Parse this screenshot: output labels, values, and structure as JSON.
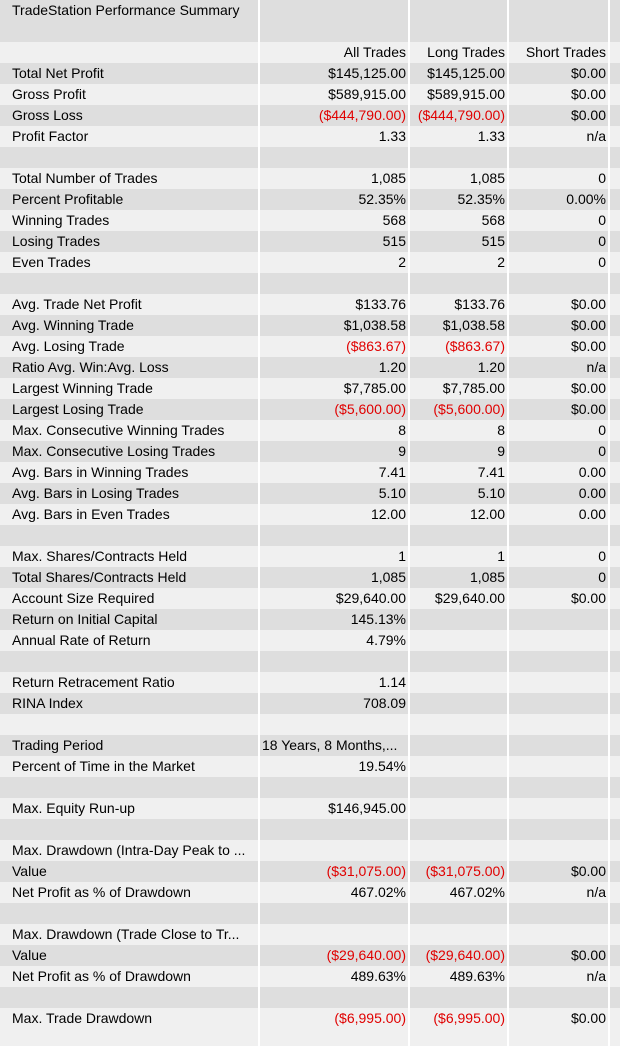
{
  "title": "TradeStation Performance Summary",
  "headers": [
    "",
    "All Trades",
    "Long Trades",
    "Short Trades"
  ],
  "rows": [
    [
      "Total Net Profit",
      "$145,125.00",
      "$145,125.00",
      "$0.00"
    ],
    [
      "Gross Profit",
      "$589,915.00",
      "$589,915.00",
      "$0.00"
    ],
    [
      "Gross Loss",
      "($444,790.00)",
      "($444,790.00)",
      "$0.00"
    ],
    [
      "Profit Factor",
      "1.33",
      "1.33",
      "n/a"
    ],
    null,
    [
      "Total Number of Trades",
      "1,085",
      "1,085",
      "0"
    ],
    [
      "Percent Profitable",
      "52.35%",
      "52.35%",
      "0.00%"
    ],
    [
      "Winning Trades",
      "568",
      "568",
      "0"
    ],
    [
      "Losing Trades",
      "515",
      "515",
      "0"
    ],
    [
      "Even Trades",
      "2",
      "2",
      "0"
    ],
    null,
    [
      "Avg. Trade Net Profit",
      "$133.76",
      "$133.76",
      "$0.00"
    ],
    [
      "Avg. Winning Trade",
      "$1,038.58",
      "$1,038.58",
      "$0.00"
    ],
    [
      "Avg. Losing Trade",
      "($863.67)",
      "($863.67)",
      "$0.00"
    ],
    [
      "Ratio Avg. Win:Avg. Loss",
      "1.20",
      "1.20",
      "n/a"
    ],
    [
      "Largest Winning Trade",
      "$7,785.00",
      "$7,785.00",
      "$0.00"
    ],
    [
      "Largest Losing Trade",
      "($5,600.00)",
      "($5,600.00)",
      "$0.00"
    ],
    [
      "Max. Consecutive Winning Trades",
      "8",
      "8",
      "0"
    ],
    [
      "Max. Consecutive Losing Trades",
      "9",
      "9",
      "0"
    ],
    [
      "Avg. Bars in Winning Trades",
      "7.41",
      "7.41",
      "0.00"
    ],
    [
      "Avg. Bars in Losing Trades",
      "5.10",
      "5.10",
      "0.00"
    ],
    [
      "Avg. Bars in Even Trades",
      "12.00",
      "12.00",
      "0.00"
    ],
    null,
    [
      "Max. Shares/Contracts Held",
      "1",
      "1",
      "0"
    ],
    [
      "Total Shares/Contracts Held",
      "1,085",
      "1,085",
      "0"
    ],
    [
      "Account Size Required",
      "$29,640.00",
      "$29,640.00",
      "$0.00"
    ],
    [
      "Return on Initial Capital",
      "145.13%",
      "",
      ""
    ],
    [
      "Annual Rate of Return",
      "4.79%",
      "",
      ""
    ],
    null,
    [
      "Return Retracement Ratio",
      "1.14",
      "",
      ""
    ],
    [
      "RINA Index",
      "708.09",
      "",
      ""
    ],
    null,
    [
      "Trading Period",
      "18 Years, 8 Months,...",
      "",
      ""
    ],
    [
      "Percent of Time in the Market",
      "19.54%",
      "",
      ""
    ],
    null,
    [
      "Max. Equity Run-up",
      "$146,945.00",
      "",
      ""
    ],
    null,
    [
      "Max. Drawdown (Intra-Day Peak to ...",
      "",
      "",
      ""
    ],
    [
      "Value",
      "($31,075.00)",
      "($31,075.00)",
      "$0.00"
    ],
    [
      "Net Profit as % of Drawdown",
      "467.02%",
      "467.02%",
      "n/a"
    ],
    null,
    [
      "Max. Drawdown (Trade Close to Tr...",
      "",
      "",
      ""
    ],
    [
      "Value",
      "($29,640.00)",
      "($29,640.00)",
      "$0.00"
    ],
    [
      "Net Profit as % of Drawdown",
      "489.63%",
      "489.63%",
      "n/a"
    ],
    null,
    [
      "Max. Trade Drawdown",
      "($6,995.00)",
      "($6,995.00)",
      "$0.00"
    ]
  ],
  "colors": {
    "negative": "#e00000",
    "row_light": "#f0f0f0",
    "row_dark": "#dedede",
    "grid": "#ffffff"
  }
}
